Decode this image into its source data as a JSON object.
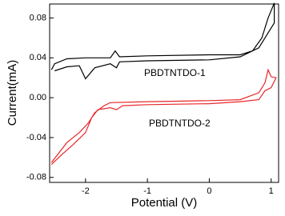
{
  "chart_data": {
    "type": "line",
    "xlabel": "Potential (V)",
    "ylabel": "Current(mA)",
    "xlim": [
      -2.58,
      1.12
    ],
    "ylim": [
      -0.085,
      0.094
    ],
    "xticks": [
      -2,
      -1,
      0,
      1
    ],
    "yticks": [
      0.08,
      0.04,
      {
        "value": 0,
        "label": "0.00"
      },
      -0.04,
      -0.08
    ],
    "series": [
      {
        "name": "PBDTNTDO-1",
        "color": "#000000",
        "x": [
          -2.5,
          -2.3,
          -2.1,
          -2.0,
          -1.85,
          -1.6,
          -1.5,
          -1.45,
          -1.0,
          0,
          0.5,
          0.8,
          0.95,
          1.05,
          1.05,
          0.95,
          0.85,
          0.7,
          0.5,
          0,
          -1.0,
          -1.45,
          -1.52,
          -1.6,
          -2.0,
          -2.3,
          -2.5,
          -2.55
        ],
        "values": [
          0.027,
          0.031,
          0.032,
          0.019,
          0.03,
          0.034,
          0.03,
          0.036,
          0.037,
          0.038,
          0.041,
          0.05,
          0.065,
          0.075,
          0.095,
          0.08,
          0.06,
          0.047,
          0.043,
          0.043,
          0.042,
          0.041,
          0.047,
          0.04,
          0.04,
          0.039,
          0.034,
          0.028
        ]
      },
      {
        "name": "PBDTNTDO-2",
        "color": "#e8262a",
        "x": [
          -2.55,
          -2.3,
          -2.1,
          -1.95,
          -1.85,
          -1.7,
          -1.6,
          -1.0,
          0,
          0.5,
          0.8,
          0.9,
          0.95,
          1.0,
          1.08,
          1.08,
          1.0,
          0.9,
          0.8,
          0.5,
          0,
          -1.0,
          -1.4,
          -1.5,
          -1.6,
          -1.8,
          -1.9,
          -2.0,
          -2.2,
          -2.4,
          -2.55
        ],
        "values": [
          -0.065,
          -0.045,
          -0.035,
          -0.025,
          -0.015,
          -0.008,
          -0.005,
          -0.004,
          -0.003,
          -0.002,
          0.005,
          0.015,
          0.028,
          0.021,
          0.02,
          0.02,
          0.01,
          0.007,
          -0.002,
          -0.004,
          -0.006,
          -0.007,
          -0.008,
          -0.012,
          -0.01,
          -0.012,
          -0.02,
          -0.035,
          -0.047,
          -0.058,
          -0.067
        ]
      }
    ]
  }
}
